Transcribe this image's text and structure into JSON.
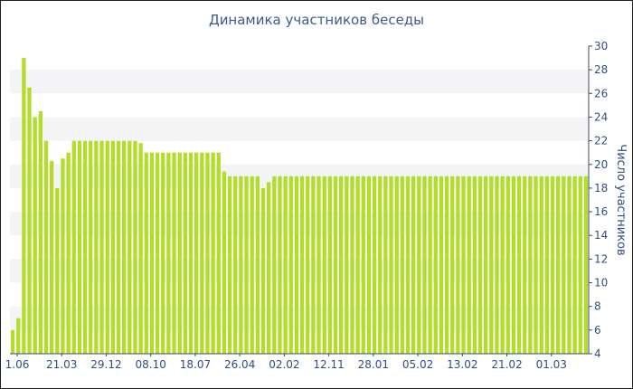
{
  "chart_data": {
    "type": "bar",
    "title": "Динамика участников беседы",
    "xlabel": "",
    "ylabel": "Число участников",
    "ylim": [
      4,
      30
    ],
    "yticks": [
      4,
      6,
      8,
      10,
      12,
      14,
      16,
      18,
      20,
      22,
      24,
      26,
      28,
      30
    ],
    "x_tick_labels": [
      "1.06",
      "21.03",
      "29.12",
      "08.10",
      "18.07",
      "26.04",
      "02.02",
      "12.11",
      "28.01",
      "05.02",
      "13.02",
      "21.02",
      "01.03"
    ],
    "bar_color": "#b5dc2a",
    "values": [
      6,
      7,
      29,
      26.5,
      24,
      24.5,
      22,
      20.3,
      18,
      20.5,
      21,
      22,
      22,
      22,
      22,
      22,
      22,
      22,
      22,
      22,
      22,
      22,
      22,
      21.8,
      21,
      21,
      21,
      21,
      21,
      21,
      21,
      21,
      21,
      21,
      21,
      21,
      21,
      21,
      19.4,
      19,
      19,
      19,
      19,
      19,
      19,
      18,
      18.5,
      19,
      19,
      19,
      19,
      19,
      19,
      19,
      19,
      19,
      19,
      19,
      19,
      19,
      19,
      19,
      19,
      19,
      19,
      19,
      19,
      19,
      19,
      19,
      19,
      19,
      19,
      19,
      19,
      19,
      19,
      19,
      19,
      19,
      19,
      19,
      19,
      19,
      19,
      19,
      19,
      19,
      19,
      19,
      19,
      19,
      19,
      19,
      19,
      19,
      19,
      19,
      19,
      19,
      19,
      19,
      19,
      19
    ]
  }
}
